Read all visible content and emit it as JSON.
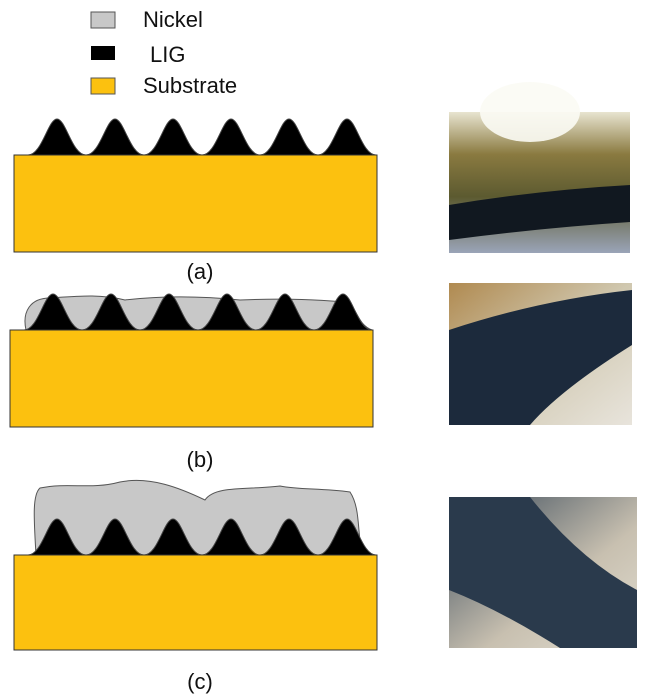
{
  "legend": [
    {
      "label": "Nickel"
    },
    {
      "label": "LIG"
    },
    {
      "label": "Substrate"
    }
  ],
  "panels": [
    {
      "label": "(a)"
    },
    {
      "label": "(b)"
    },
    {
      "label": "(c)"
    }
  ]
}
